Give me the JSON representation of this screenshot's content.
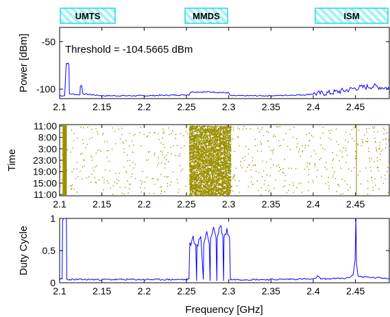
{
  "chart_data": [
    {
      "type": "line",
      "panel": "power",
      "ylabel": "Power [dBm]",
      "xlabel": "",
      "xlim": [
        2.1,
        2.49
      ],
      "ylim": [
        -110,
        -35
      ],
      "x_ticks": [
        "2.1",
        "2.15",
        "2.2",
        "2.25",
        "2.3",
        "2.35",
        "2.4",
        "2.45"
      ],
      "y_ticks": [
        "-50",
        "-100"
      ],
      "annotation": "Threshold = -104.5665 dBm",
      "bands": [
        {
          "name": "UMTS",
          "from": 2.1,
          "to": 2.17
        },
        {
          "name": "MMDS",
          "from": 2.25,
          "to": 2.3
        },
        {
          "name": "ISM",
          "from": 2.4,
          "to": 2.49
        }
      ],
      "series": [
        {
          "color": "#0000ff",
          "points": [
            [
              2.1,
              -107
            ],
            [
              2.106,
              -107
            ],
            [
              2.1075,
              -78
            ],
            [
              2.108,
              -73
            ],
            [
              2.11,
              -73
            ],
            [
              2.111,
              -74
            ],
            [
              2.1115,
              -105
            ],
            [
              2.124,
              -106
            ],
            [
              2.1245,
              -97
            ],
            [
              2.126,
              -96
            ],
            [
              2.1275,
              -105
            ],
            [
              2.15,
              -107
            ],
            [
              2.2,
              -107
            ],
            [
              2.253,
              -106
            ],
            [
              2.255,
              -103
            ],
            [
              2.28,
              -103
            ],
            [
              2.3,
              -104
            ],
            [
              2.302,
              -107
            ],
            [
              2.35,
              -107
            ],
            [
              2.39,
              -106
            ],
            [
              2.4,
              -105
            ],
            [
              2.42,
              -104
            ],
            [
              2.44,
              -101
            ],
            [
              2.45,
              -99
            ],
            [
              2.46,
              -98
            ],
            [
              2.47,
              -97
            ],
            [
              2.48,
              -98
            ],
            [
              2.49,
              -99
            ]
          ]
        }
      ]
    },
    {
      "type": "scatter",
      "panel": "time",
      "ylabel": "Time",
      "xlim": [
        2.1,
        2.49
      ],
      "x_ticks": [
        "2.1",
        "2.15",
        "2.2",
        "2.25",
        "2.3",
        "2.35",
        "2.4",
        "2.45"
      ],
      "y_ticks": [
        "11:00",
        "8:00",
        "3:00",
        "23:00",
        "19:00",
        "15:00",
        "11:00"
      ],
      "color": "#9b9000",
      "dense_bands": [
        {
          "from": 2.1035,
          "to": 2.1085
        },
        {
          "from": 2.253,
          "to": 2.302
        },
        {
          "from": 2.4505,
          "to": 2.4515
        }
      ]
    },
    {
      "type": "line",
      "panel": "duty-cycle",
      "ylabel": "Duty Cycle",
      "xlabel": "Frequency [GHz]",
      "xlim": [
        2.1,
        2.49
      ],
      "ylim": [
        0,
        1
      ],
      "x_ticks": [
        "2.1",
        "2.15",
        "2.2",
        "2.25",
        "2.3",
        "2.35",
        "2.4",
        "2.45"
      ],
      "y_ticks": [
        "1",
        "0.5",
        "0"
      ],
      "series": [
        {
          "color": "#0000ff",
          "points": [
            [
              2.1,
              0.05
            ],
            [
              2.103,
              0.06
            ],
            [
              2.1035,
              0.95
            ],
            [
              2.105,
              1.0
            ],
            [
              2.108,
              1.0
            ],
            [
              2.1085,
              0.05
            ],
            [
              2.15,
              0.05
            ],
            [
              2.2,
              0.05
            ],
            [
              2.25,
              0.05
            ],
            [
              2.253,
              0.06
            ],
            [
              2.254,
              0.58
            ],
            [
              2.258,
              0.7
            ],
            [
              2.261,
              0.6
            ],
            [
              2.262,
              0.03
            ],
            [
              2.2625,
              0.55
            ],
            [
              2.267,
              0.72
            ],
            [
              2.27,
              0.05
            ],
            [
              2.2705,
              0.6
            ],
            [
              2.274,
              0.8
            ],
            [
              2.277,
              0.6
            ],
            [
              2.278,
              0.03
            ],
            [
              2.2785,
              0.7
            ],
            [
              2.282,
              0.86
            ],
            [
              2.285,
              0.7
            ],
            [
              2.286,
              0.03
            ],
            [
              2.2865,
              0.72
            ],
            [
              2.29,
              0.9
            ],
            [
              2.293,
              0.75
            ],
            [
              2.294,
              0.03
            ],
            [
              2.2945,
              0.7
            ],
            [
              2.298,
              0.82
            ],
            [
              2.301,
              0.7
            ],
            [
              2.302,
              0.05
            ],
            [
              2.35,
              0.05
            ],
            [
              2.39,
              0.06
            ],
            [
              2.4,
              0.05
            ],
            [
              2.405,
              0.1
            ],
            [
              2.41,
              0.06
            ],
            [
              2.44,
              0.07
            ],
            [
              2.447,
              0.12
            ],
            [
              2.4495,
              0.35
            ],
            [
              2.4505,
              1.0
            ],
            [
              2.4512,
              0.3
            ],
            [
              2.453,
              0.1
            ],
            [
              2.47,
              0.08
            ],
            [
              2.49,
              0.07
            ]
          ]
        }
      ]
    }
  ]
}
